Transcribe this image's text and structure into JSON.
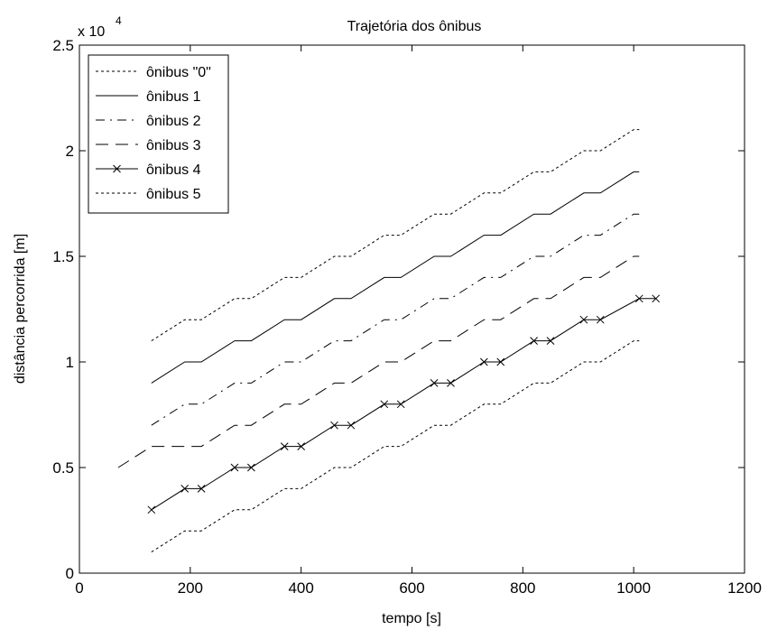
{
  "chart_data": {
    "type": "line",
    "title": "Trajetória dos ônibus",
    "xlabel": "tempo [s]",
    "ylabel": "distância percorrida [m]",
    "y_multiplier_label": "x 10",
    "y_multiplier_exponent": "4",
    "xlim": [
      0,
      1200
    ],
    "ylim": [
      0,
      25000
    ],
    "x_ticks": [
      0,
      200,
      400,
      600,
      800,
      1000,
      1200
    ],
    "y_ticks": [
      0,
      5000,
      10000,
      15000,
      20000,
      25000
    ],
    "x_tick_labels": [
      "0",
      "200",
      "400",
      "600",
      "800",
      "1000",
      "1200"
    ],
    "y_tick_labels": [
      "0",
      "0.5",
      "1",
      "1.5",
      "2",
      "2.5"
    ],
    "grid": false,
    "legend_position": "top-left",
    "series": [
      {
        "name": "ônibus \"0\"",
        "line_style": "dotted",
        "color": "#000000",
        "x": [
          130,
          190,
          220,
          280,
          310,
          370,
          400,
          460,
          490,
          550,
          580,
          640,
          670,
          730,
          760,
          820,
          850,
          910,
          940,
          1000,
          1010
        ],
        "y": [
          11000,
          12000,
          12000,
          13000,
          13000,
          14000,
          14000,
          15000,
          15000,
          16000,
          16000,
          17000,
          17000,
          18000,
          18000,
          19000,
          19000,
          20000,
          20000,
          21000,
          21000
        ]
      },
      {
        "name": "ônibus 1",
        "line_style": "solid",
        "color": "#000000",
        "x": [
          130,
          190,
          220,
          280,
          310,
          370,
          400,
          460,
          490,
          550,
          580,
          640,
          670,
          730,
          760,
          820,
          850,
          910,
          940,
          1000,
          1010
        ],
        "y": [
          9000,
          10000,
          10000,
          11000,
          11000,
          12000,
          12000,
          13000,
          13000,
          14000,
          14000,
          15000,
          15000,
          16000,
          16000,
          17000,
          17000,
          18000,
          18000,
          19000,
          19000
        ]
      },
      {
        "name": "ônibus 2",
        "line_style": "dashdot",
        "color": "#000000",
        "x": [
          130,
          190,
          220,
          280,
          310,
          370,
          400,
          460,
          490,
          550,
          580,
          640,
          670,
          730,
          760,
          820,
          850,
          910,
          940,
          1000,
          1010
        ],
        "y": [
          7000,
          8000,
          8000,
          9000,
          9000,
          10000,
          10000,
          11000,
          11000,
          12000,
          12000,
          13000,
          13000,
          14000,
          14000,
          15000,
          15000,
          16000,
          16000,
          17000,
          17000
        ]
      },
      {
        "name": "ônibus 3",
        "line_style": "dashed",
        "color": "#000000",
        "x": [
          70,
          130,
          220,
          280,
          310,
          370,
          400,
          460,
          490,
          550,
          580,
          640,
          670,
          730,
          760,
          820,
          850,
          910,
          940,
          1000,
          1010
        ],
        "y": [
          5000,
          6000,
          6000,
          7000,
          7000,
          8000,
          8000,
          9000,
          9000,
          10000,
          10000,
          11000,
          11000,
          12000,
          12000,
          13000,
          13000,
          14000,
          14000,
          15000,
          15000
        ]
      },
      {
        "name": "ônibus 4",
        "line_style": "solid",
        "marker": "x",
        "color": "#000000",
        "x": [
          130,
          190,
          220,
          280,
          310,
          370,
          400,
          460,
          490,
          550,
          580,
          640,
          670,
          730,
          760,
          820,
          850,
          910,
          940,
          1010,
          1040
        ],
        "y": [
          3000,
          4000,
          4000,
          5000,
          5000,
          6000,
          6000,
          7000,
          7000,
          8000,
          8000,
          9000,
          9000,
          10000,
          10000,
          11000,
          11000,
          12000,
          12000,
          13000,
          13000
        ]
      },
      {
        "name": "ônibus 5",
        "line_style": "dotted",
        "color": "#000000",
        "x": [
          130,
          190,
          220,
          280,
          310,
          370,
          400,
          460,
          490,
          550,
          580,
          640,
          670,
          730,
          760,
          820,
          850,
          910,
          940,
          1000,
          1010
        ],
        "y": [
          1000,
          2000,
          2000,
          3000,
          3000,
          4000,
          4000,
          5000,
          5000,
          6000,
          6000,
          7000,
          7000,
          8000,
          8000,
          9000,
          9000,
          10000,
          10000,
          11000,
          11000
        ]
      }
    ]
  }
}
